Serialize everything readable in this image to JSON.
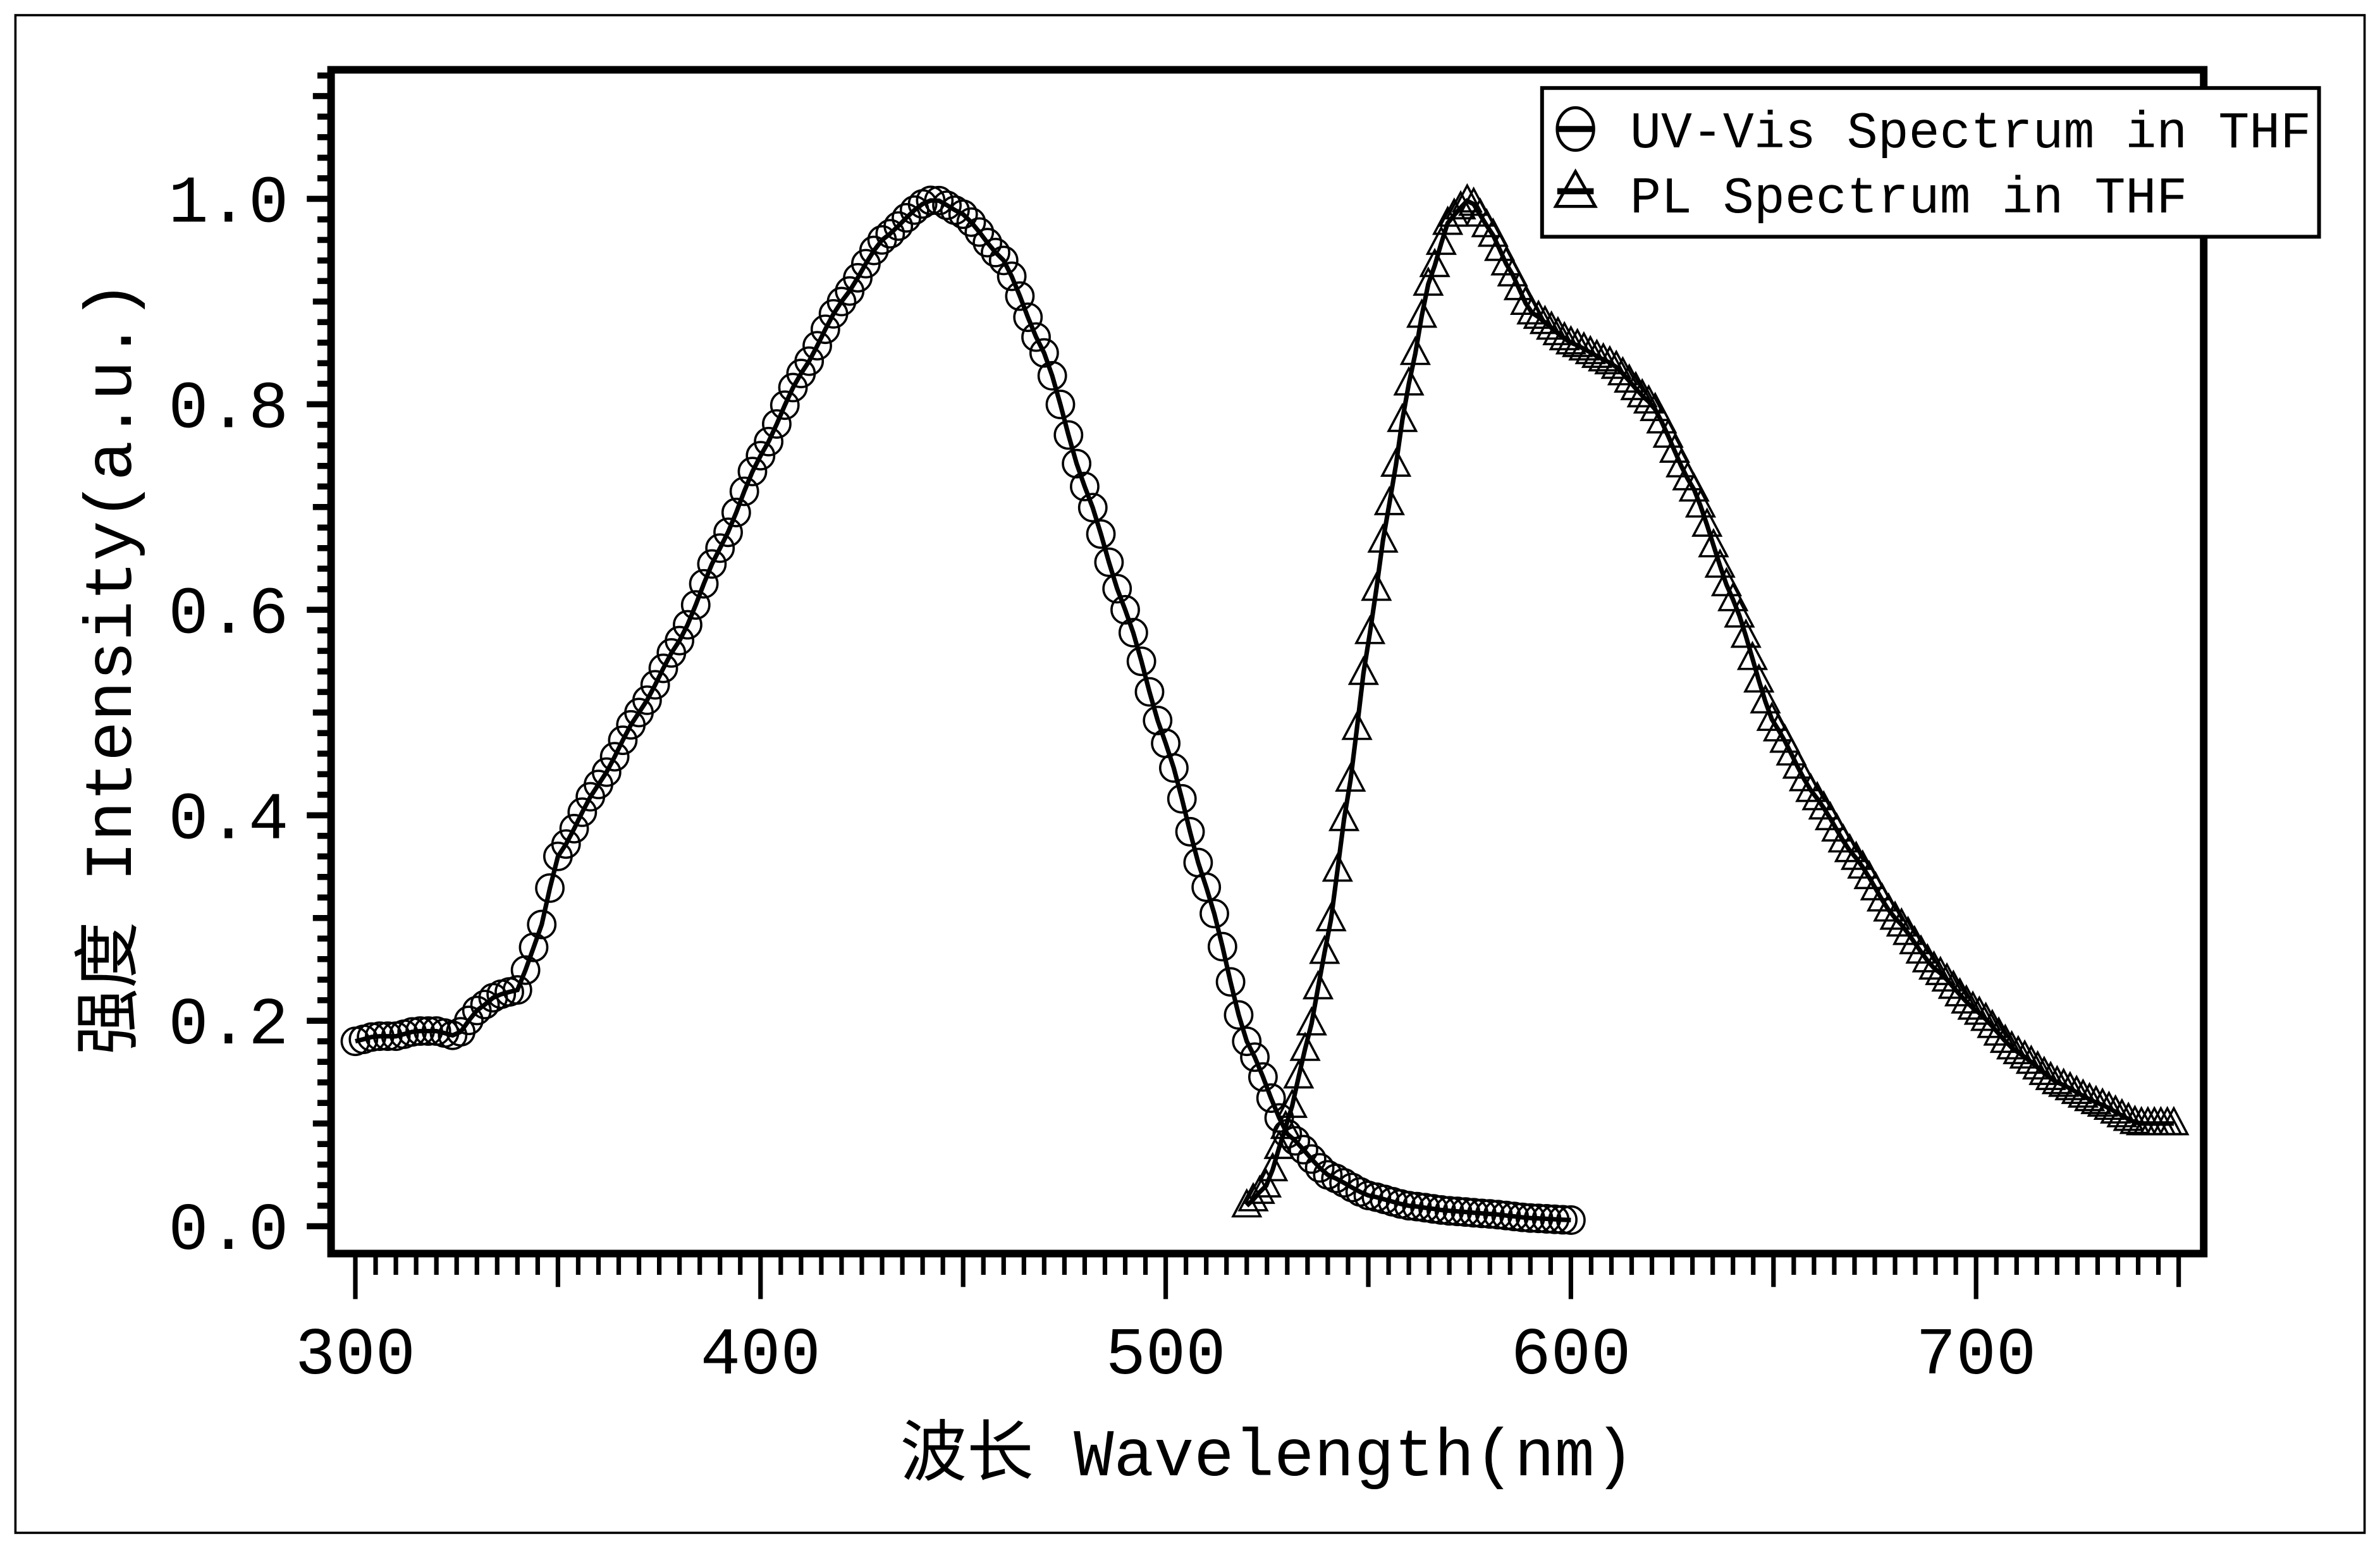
{
  "chart_data": {
    "type": "line",
    "xlabel": "波长 Wavelength(nm)",
    "ylabel": "强度 Intensity(a.u.)",
    "xlim": [
      294,
      756
    ],
    "ylim": [
      -0.025,
      1.12
    ],
    "xticks": [
      300,
      400,
      500,
      600,
      700
    ],
    "xtick_labels": [
      "300",
      "400",
      "500",
      "600",
      "700"
    ],
    "yticks": [
      0.0,
      0.2,
      0.4,
      0.6,
      0.8,
      1.0
    ],
    "ytick_labels": [
      "0.0",
      "0.2",
      "0.4",
      "0.6",
      "0.8",
      "1.0"
    ],
    "grid": false,
    "legend_position": "top-right",
    "series": [
      {
        "name": "UV-Vis Spectrum in THF",
        "marker": "circle",
        "color": "#000000",
        "x": [
          300,
          305,
          310,
          315,
          320,
          325,
          330,
          335,
          340,
          345,
          350,
          360,
          370,
          380,
          390,
          400,
          410,
          420,
          430,
          440,
          443,
          450,
          460,
          470,
          480,
          490,
          500,
          510,
          520,
          530,
          540,
          550,
          560,
          570,
          580,
          590,
          600
        ],
        "y": [
          0.18,
          0.185,
          0.185,
          0.19,
          0.19,
          0.185,
          0.21,
          0.225,
          0.23,
          0.28,
          0.36,
          0.43,
          0.5,
          0.57,
          0.66,
          0.75,
          0.83,
          0.9,
          0.96,
          0.995,
          1.0,
          0.985,
          0.94,
          0.85,
          0.72,
          0.6,
          0.47,
          0.33,
          0.18,
          0.09,
          0.05,
          0.03,
          0.02,
          0.015,
          0.012,
          0.008,
          0.006
        ]
      },
      {
        "name": "PL Spectrum in THF",
        "marker": "triangle",
        "color": "#000000",
        "x": [
          520,
          525,
          530,
          535,
          540,
          545,
          550,
          555,
          560,
          565,
          570,
          575,
          580,
          585,
          590,
          600,
          610,
          620,
          630,
          640,
          650,
          660,
          670,
          680,
          690,
          700,
          710,
          720,
          730,
          740,
          750
        ],
        "y": [
          0.02,
          0.04,
          0.1,
          0.18,
          0.28,
          0.42,
          0.57,
          0.7,
          0.82,
          0.92,
          0.98,
          1.0,
          0.97,
          0.93,
          0.89,
          0.86,
          0.84,
          0.8,
          0.72,
          0.61,
          0.49,
          0.42,
          0.36,
          0.3,
          0.25,
          0.21,
          0.17,
          0.14,
          0.12,
          0.1,
          0.1
        ]
      }
    ]
  }
}
